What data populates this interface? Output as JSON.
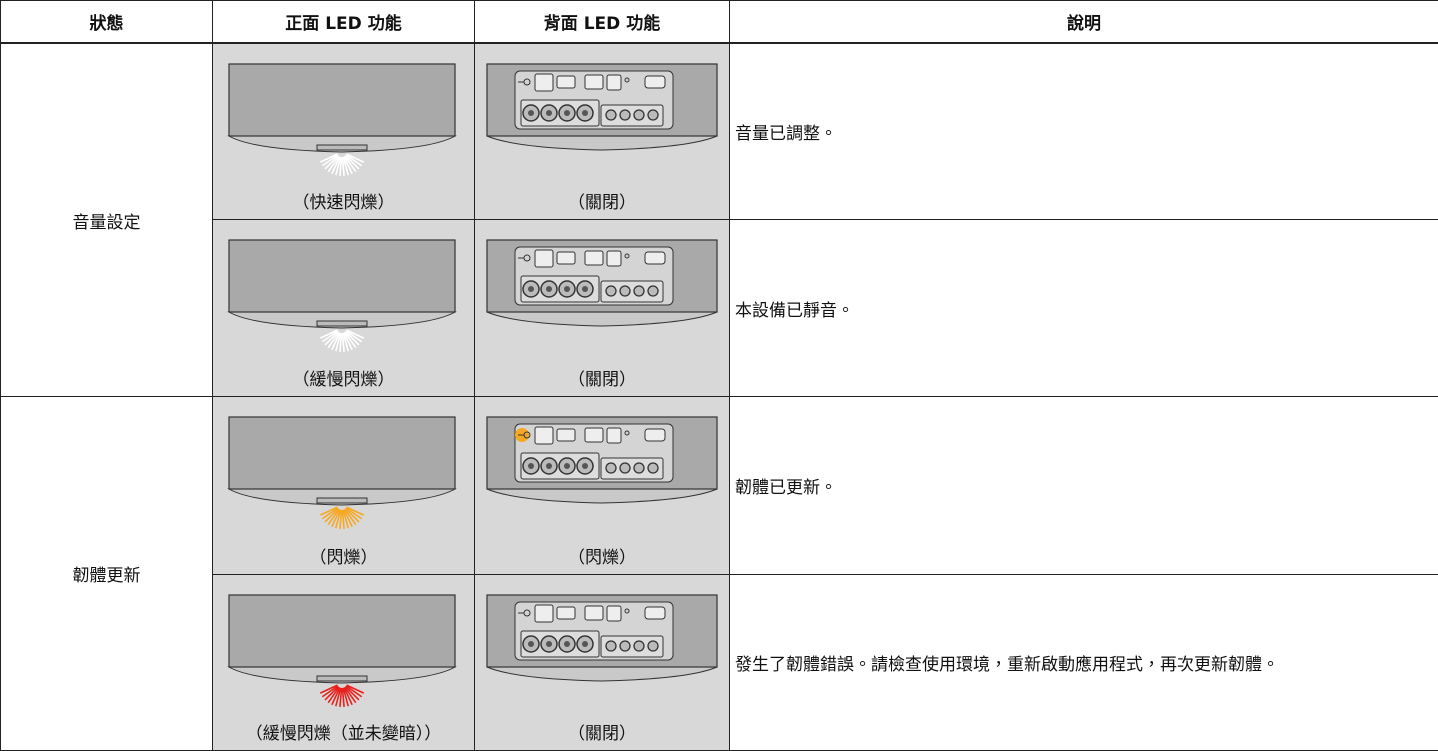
{
  "table": {
    "header": [
      "狀態",
      "正面 LED 功能",
      "背面 LED 功能",
      "說明"
    ],
    "groups": [
      {
        "status": "音量設定",
        "rows": [
          {
            "front": "（快速閃爍）",
            "rear": "（關閉）",
            "description": "音量已調整。"
          },
          {
            "front": "（緩慢閃爍）",
            "rear": "（關閉）",
            "description": "本設備已靜音。"
          }
        ]
      },
      {
        "status": "韌體更新",
        "rows": [
          {
            "front": "（閃爍）",
            "rear": "（閃爍）",
            "description": "韌體已更新。"
          },
          {
            "front": "（緩慢閃爍（並未變暗））",
            "rear": "（關閉）",
            "description": "發生了韌體錯誤。請檢查使用環境，重新啟動應用程式，再次更新韌體。"
          }
        ]
      }
    ]
  }
}
